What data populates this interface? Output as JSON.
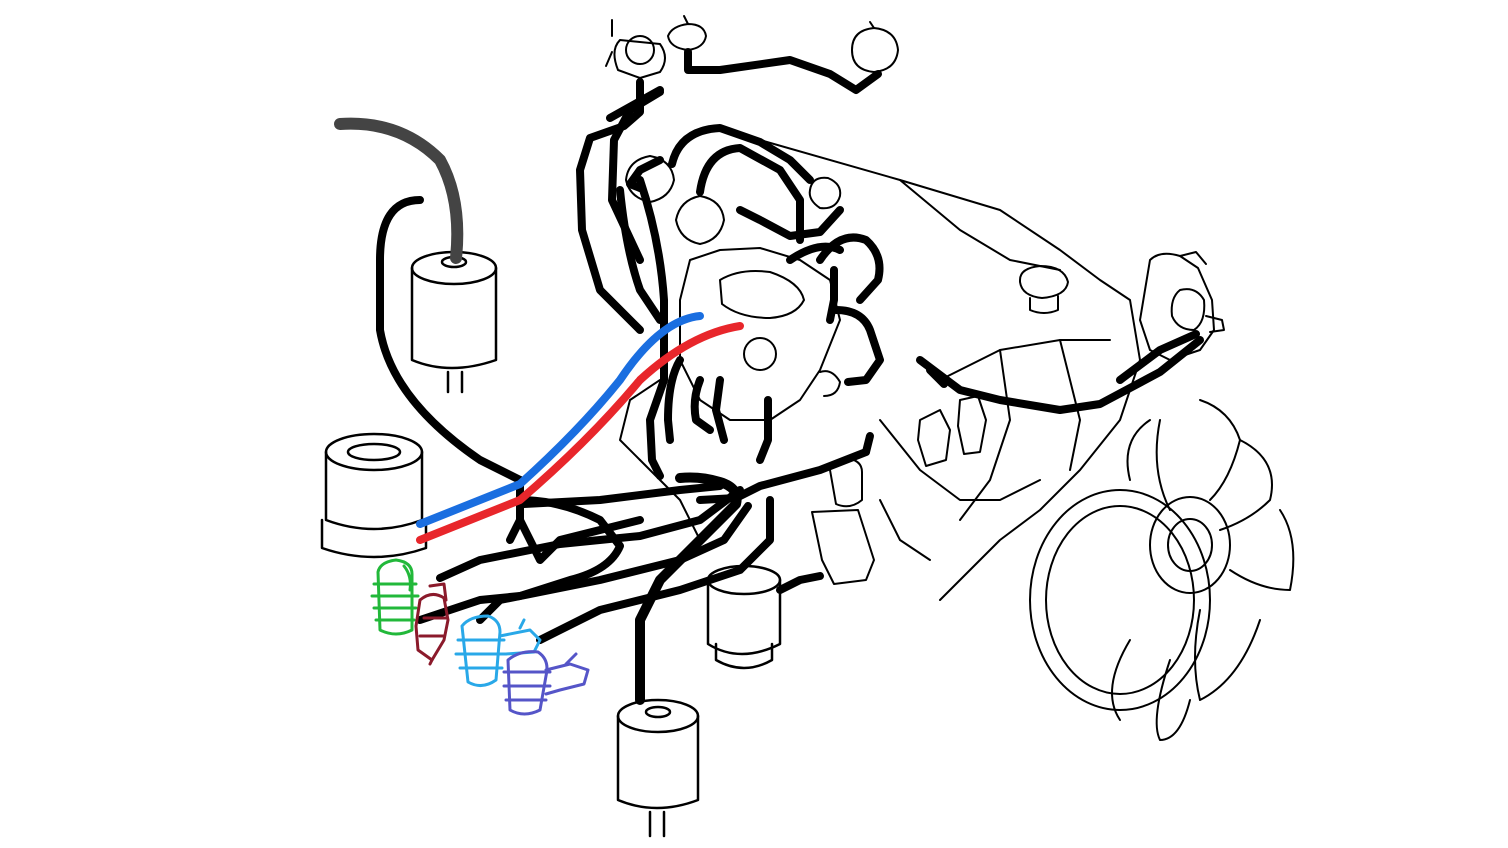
{
  "diagram": {
    "kind": "engine-vacuum-hose-routing",
    "background": "#ffffff",
    "line_color": "#000000",
    "highlight_colors": {
      "blue_hose": "#1a6ee0",
      "red_hose": "#e8262b",
      "green_vsv": "#22b83a",
      "maroon_valve": "#8b1a2b",
      "lightblue_valve": "#29a8e8",
      "purple_valve": "#5555c8"
    }
  }
}
